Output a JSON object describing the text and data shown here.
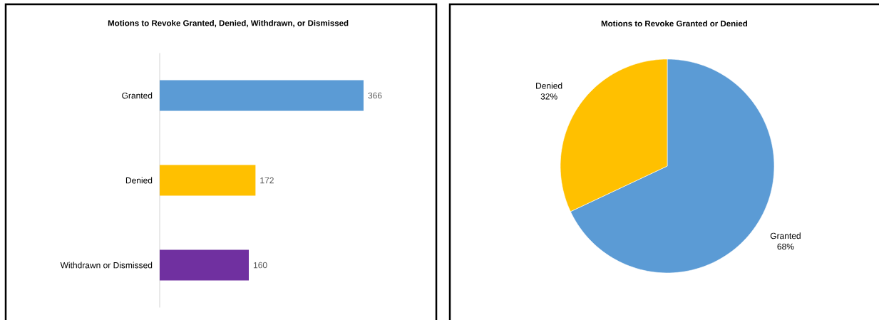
{
  "chart_data": [
    {
      "type": "bar",
      "orientation": "horizontal",
      "title": "Motions to Revoke Granted, Denied, Withdrawn, or Dismissed",
      "categories": [
        "Granted",
        "Denied",
        "Withdrawn or Dismissed"
      ],
      "values": [
        366,
        172,
        160
      ],
      "colors": [
        "#5b9bd5",
        "#ffc000",
        "#7030a0"
      ],
      "data_labels": true
    },
    {
      "type": "pie",
      "title": "Motions to Revoke Granted or Denied",
      "categories": [
        "Granted",
        "Denied"
      ],
      "values": [
        68,
        32
      ],
      "colors": [
        "#5b9bd5",
        "#ffc000"
      ],
      "value_labels": [
        "68%",
        "32%"
      ]
    }
  ]
}
